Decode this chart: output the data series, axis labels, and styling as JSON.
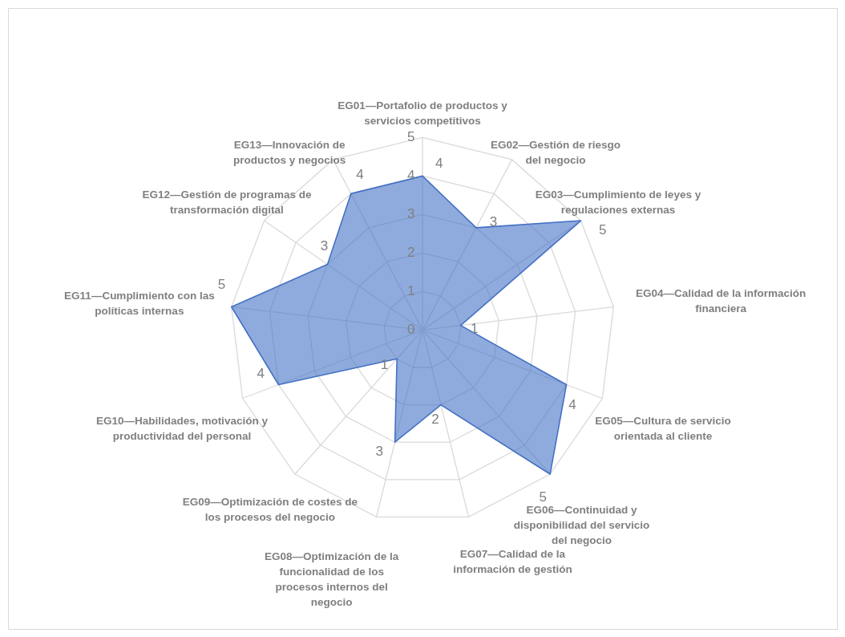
{
  "chart_data": {
    "type": "radar",
    "categories": [
      "EG01—Portafolio de productos y servicios competitivos",
      "EG02—Gestión de riesgo del negocio",
      "EG03—Cumplimiento de leyes y regulaciones externas",
      "EG04—Calidad de la información financiera",
      "EG05—Cultura de servicio orientada al cliente",
      "EG06—Continuidad y disponibilidad del servicio del negocio",
      "EG07—Calidad de la información de gestión",
      "EG08—Optimización de la funcionalidad de los procesos internos del negocio",
      "EG09—Optimización de costes de los procesos del negocio",
      "EG10—Habilidades, motivación y productividad del personal",
      "EG11—Cumplimiento con las políticas internas",
      "EG12—Gestión de programas de transformación digital",
      "EG13—Innovación de productos y negocios"
    ],
    "series": [
      {
        "color": "#4472c4",
        "values": [
          4,
          3,
          5,
          1,
          4,
          5,
          2,
          3,
          1,
          4,
          5,
          3,
          4
        ]
      }
    ],
    "ylim": [
      0,
      5
    ],
    "yticks": [
      0,
      1,
      2,
      3,
      4,
      5
    ],
    "grid": true,
    "data_labels": true
  }
}
